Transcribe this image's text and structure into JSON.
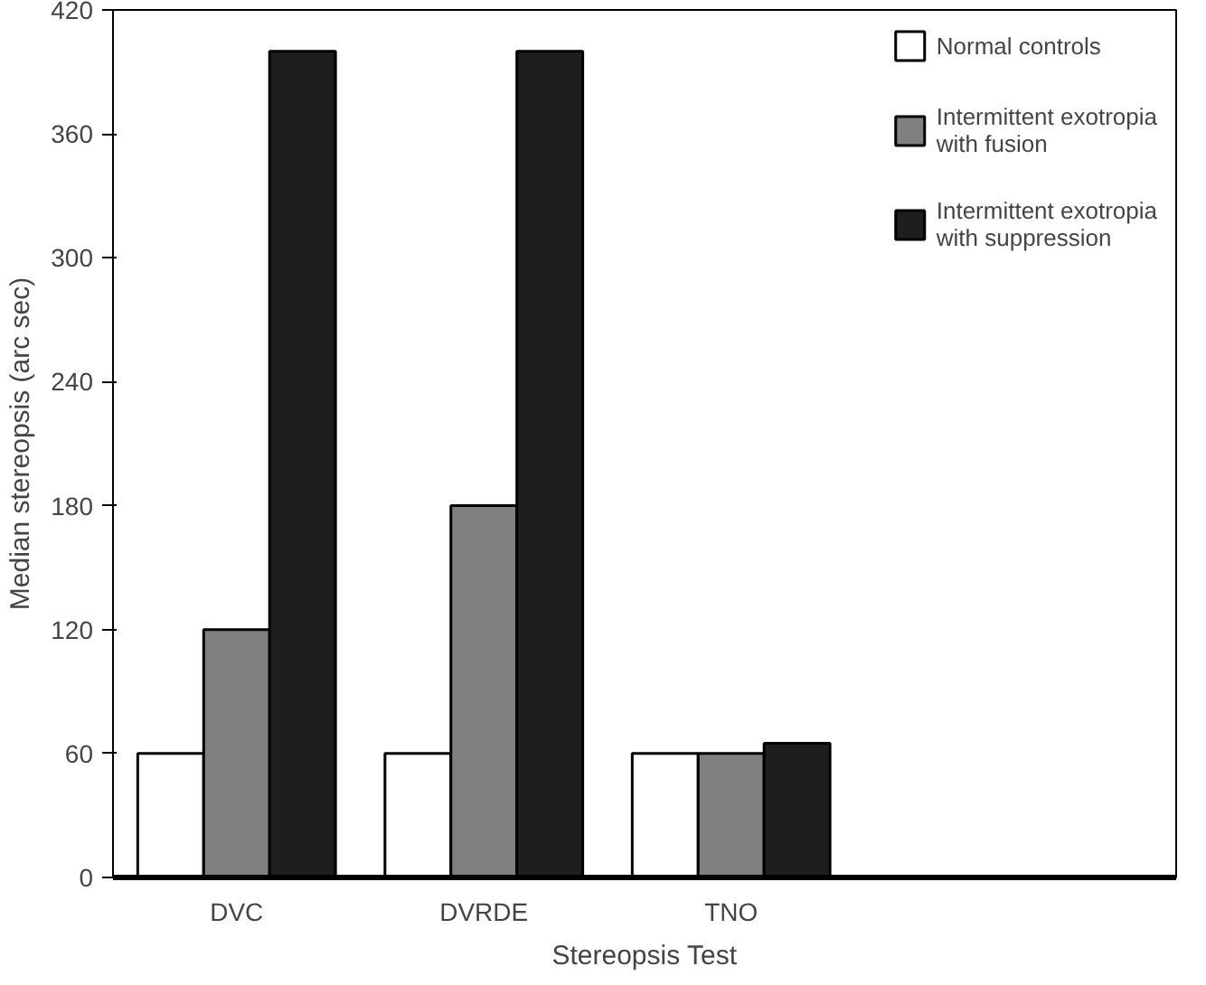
{
  "chart_data": {
    "type": "bar",
    "xlabel": "Stereopsis Test",
    "ylabel": "Median stereopsis (arc sec)",
    "categories": [
      "DVC",
      "DVRDE",
      "TNO"
    ],
    "series": [
      {
        "name": "Normal controls",
        "color": "#ffffff",
        "values": [
          60,
          60,
          60
        ]
      },
      {
        "name": "Intermittent exotropia with fusion",
        "color": "#808080",
        "values": [
          120,
          180,
          60
        ]
      },
      {
        "name": "Intermittent exotropia with suppression",
        "color": "#1e1e1e",
        "values": [
          400,
          400,
          65
        ]
      }
    ],
    "ylim": [
      0,
      420
    ],
    "yticks": [
      0,
      60,
      120,
      180,
      240,
      300,
      360,
      420
    ],
    "grid": false,
    "legend": "top right"
  }
}
